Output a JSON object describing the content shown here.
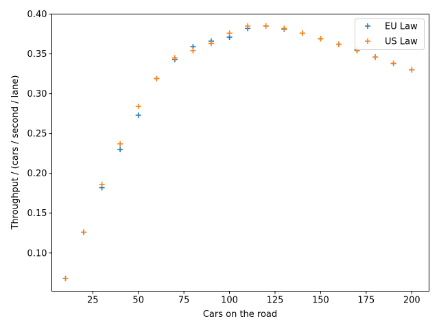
{
  "chart_data": {
    "type": "scatter",
    "title": "",
    "xlabel": "Cars on the road",
    "ylabel": "Throughput / (cars / second / lane)",
    "xlim": [
      2.5,
      209.5
    ],
    "ylim": [
      0.052,
      0.4
    ],
    "xticks": [
      25,
      50,
      75,
      100,
      125,
      150,
      175,
      200
    ],
    "xtick_labels": [
      "25",
      "50",
      "75",
      "100",
      "125",
      "150",
      "175",
      "200"
    ],
    "yticks": [
      0.1,
      0.15,
      0.2,
      0.25,
      0.3,
      0.35,
      0.4
    ],
    "ytick_labels": [
      "0.10",
      "0.15",
      "0.20",
      "0.25",
      "0.30",
      "0.35",
      "0.40"
    ],
    "grid": false,
    "legend_position": "top-right",
    "marker": "plus",
    "series": [
      {
        "name": "EU Law",
        "color": "#1f77b4",
        "x": [
          10,
          20,
          30,
          40,
          50,
          60,
          70,
          80,
          90,
          100,
          110,
          120,
          130,
          140,
          150,
          160,
          170,
          180,
          190,
          200
        ],
        "y": [
          0.068,
          0.126,
          0.182,
          0.23,
          0.273,
          0.319,
          0.343,
          0.359,
          0.366,
          0.371,
          0.382,
          0.385,
          0.381,
          0.376,
          0.369,
          0.362,
          0.355,
          0.346,
          0.338,
          0.33
        ]
      },
      {
        "name": "US Law",
        "color": "#ff7f0e",
        "x": [
          10,
          20,
          30,
          40,
          50,
          60,
          70,
          80,
          90,
          100,
          110,
          120,
          130,
          140,
          150,
          160,
          170,
          180,
          190,
          200
        ],
        "y": [
          0.068,
          0.126,
          0.186,
          0.237,
          0.284,
          0.319,
          0.345,
          0.354,
          0.363,
          0.376,
          0.385,
          0.385,
          0.382,
          0.376,
          0.369,
          0.362,
          0.354,
          0.346,
          0.338,
          0.33
        ]
      }
    ]
  }
}
